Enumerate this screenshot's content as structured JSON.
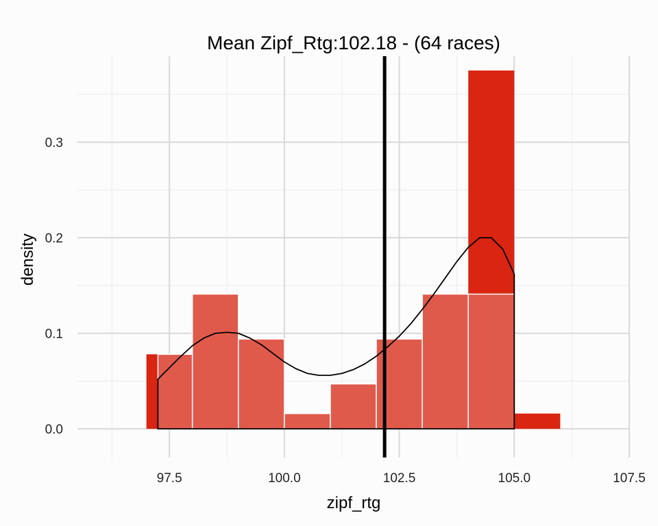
{
  "chart_data": {
    "type": "histogram",
    "title": "Mean Zipf_Rtg:102.18 - (64 races)",
    "xlabel": "zipf_rtg",
    "ylabel": "density",
    "xlim": [
      95.5,
      107.5
    ],
    "ylim": [
      -0.03,
      0.39
    ],
    "x_ticks": [
      "97.5",
      "100.0",
      "102.5",
      "105.0",
      "107.5"
    ],
    "y_ticks": [
      "0.0",
      "0.1",
      "0.2",
      "0.3"
    ],
    "x_tick_values": [
      97.5,
      100.0,
      102.5,
      105.0,
      107.5
    ],
    "y_tick_values": [
      0.0,
      0.1,
      0.2,
      0.3
    ],
    "grid": true,
    "mean_line_x": 102.18,
    "histogram": {
      "color": "#D92511",
      "bins": [
        {
          "x0": 97.0,
          "x1": 98.0,
          "value": 0.078
        },
        {
          "x0": 98.0,
          "x1": 99.0,
          "value": 0.141
        },
        {
          "x0": 99.0,
          "x1": 100.0,
          "value": 0.094
        },
        {
          "x0": 100.0,
          "x1": 101.0,
          "value": 0.0
        },
        {
          "x0": 101.0,
          "x1": 102.0,
          "value": 0.0
        },
        {
          "x0": 102.0,
          "x1": 103.0,
          "value": 0.0
        },
        {
          "x0": 103.0,
          "x1": 104.0,
          "value": 0.0
        },
        {
          "x0": 104.0,
          "x1": 105.0,
          "value": 0.375
        },
        {
          "x0": 105.0,
          "x1": 106.0,
          "value": 0.016
        }
      ]
    },
    "histogram_overlay": {
      "color": "#E05A4C",
      "bins": [
        {
          "x0": 97.25,
          "x1": 98.0,
          "value": 0.078
        },
        {
          "x0": 98.0,
          "x1": 99.0,
          "value": 0.141
        },
        {
          "x0": 99.0,
          "x1": 100.0,
          "value": 0.094
        },
        {
          "x0": 100.0,
          "x1": 101.0,
          "value": 0.016
        },
        {
          "x0": 101.0,
          "x1": 102.0,
          "value": 0.047
        },
        {
          "x0": 102.0,
          "x1": 103.0,
          "value": 0.094
        },
        {
          "x0": 103.0,
          "x1": 104.0,
          "value": 0.141
        },
        {
          "x0": 104.0,
          "x1": 105.0,
          "value": 0.141
        }
      ]
    },
    "density_curve": {
      "x": [
        97.25,
        97.5,
        97.75,
        98.0,
        98.25,
        98.5,
        98.75,
        99.0,
        99.25,
        99.5,
        99.75,
        100.0,
        100.25,
        100.5,
        100.75,
        101.0,
        101.25,
        101.5,
        101.75,
        102.0,
        102.25,
        102.5,
        102.75,
        103.0,
        103.25,
        103.5,
        103.75,
        104.0,
        104.25,
        104.5,
        104.75,
        105.0
      ],
      "y": [
        0.052,
        0.064,
        0.076,
        0.087,
        0.095,
        0.1,
        0.101,
        0.1,
        0.095,
        0.088,
        0.079,
        0.07,
        0.063,
        0.058,
        0.056,
        0.056,
        0.058,
        0.062,
        0.068,
        0.076,
        0.086,
        0.097,
        0.11,
        0.125,
        0.141,
        0.158,
        0.175,
        0.19,
        0.2,
        0.2,
        0.188,
        0.162
      ]
    }
  }
}
